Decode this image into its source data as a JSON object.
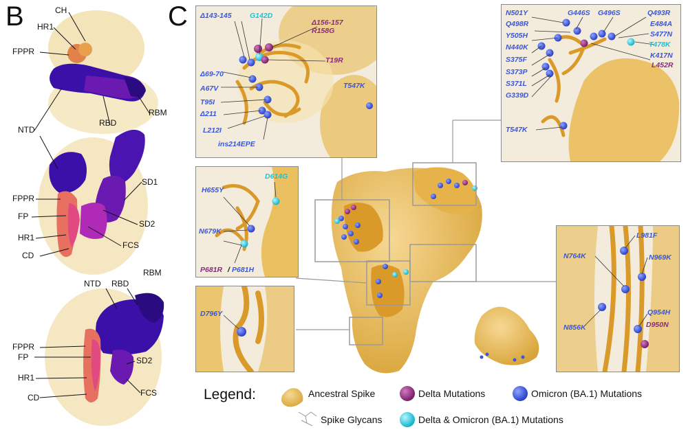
{
  "panels": {
    "b": "B",
    "c": "C"
  },
  "panel_b": {
    "top_labels": {
      "ch": "CH",
      "hr1": "HR1",
      "fppr": "FPPR",
      "ntd": "NTD",
      "rbd": "RBD",
      "rbm": "RBM"
    },
    "mid_labels": {
      "sd1": "SD1",
      "fppr": "FPPR",
      "fp": "FP",
      "sd2": "SD2",
      "hr1": "HR1",
      "fcs": "FCS",
      "cd": "CD"
    },
    "bottom_labels": {
      "ntd": "NTD",
      "rbd": "RBD",
      "rbm": "RBM",
      "fppr": "FPPR",
      "fp": "FP",
      "sd2": "SD2",
      "hr1": "HR1",
      "fcs": "FCS",
      "cd": "CD"
    }
  },
  "ntd_box": {
    "d143": "Δ143-145",
    "g142d": "G142D",
    "d156": "Δ156-157",
    "r158g": "R158G",
    "t19r": "T19R",
    "a69": "Δ69-70",
    "a67v": "A67V",
    "t95i": "T95I",
    "d211": "Δ211",
    "l212i": "L212I",
    "ins214": "ins214EPE",
    "t547k": "T547K"
  },
  "rbd_box": {
    "n501y": "N501Y",
    "g446s": "G446S",
    "g496s": "G496S",
    "q493r": "Q493R",
    "q498r": "Q498R",
    "e484a": "E484A",
    "y505h": "Y505H",
    "s477n": "S477N",
    "n440k": "N440K",
    "t478k": "T478K",
    "s375f": "S375F",
    "k417n": "K417N",
    "s373p": "S373P",
    "l452r": "L452R",
    "s371l": "S371L",
    "g339d": "G339D",
    "t547k": "T547K"
  },
  "sd_box": {
    "d614g": "D614G",
    "h655y": "H655Y",
    "n679k": "N679K",
    "p681r": "P681R",
    "slash": "/",
    "p681h": "P681H"
  },
  "cd_box": {
    "d796y": "D796Y"
  },
  "hr_box": {
    "l981f": "L981F",
    "n764k": "N764K",
    "n969k": "N969K",
    "q954h": "Q954H",
    "n856k": "N856K",
    "d950n": "D950N"
  },
  "legend": {
    "title": "Legend:",
    "ancestral": "Ancestral Spike",
    "delta": "Delta Mutations",
    "omicron": "Omicron (BA.1) Mutations",
    "glycans": "Spike Glycans",
    "both": "Delta & Omicron (BA.1) Mutations"
  },
  "colors": {
    "ancestral": "#e8b84a",
    "delta": "#8a2a7a",
    "omicron": "#3a56d8",
    "both": "#18c4d6",
    "ntd_purple": "#3a10a8",
    "rbd_violet": "#6a1ab0",
    "fppr_salmon": "#e87060",
    "fp_pink": "#e04a80"
  }
}
